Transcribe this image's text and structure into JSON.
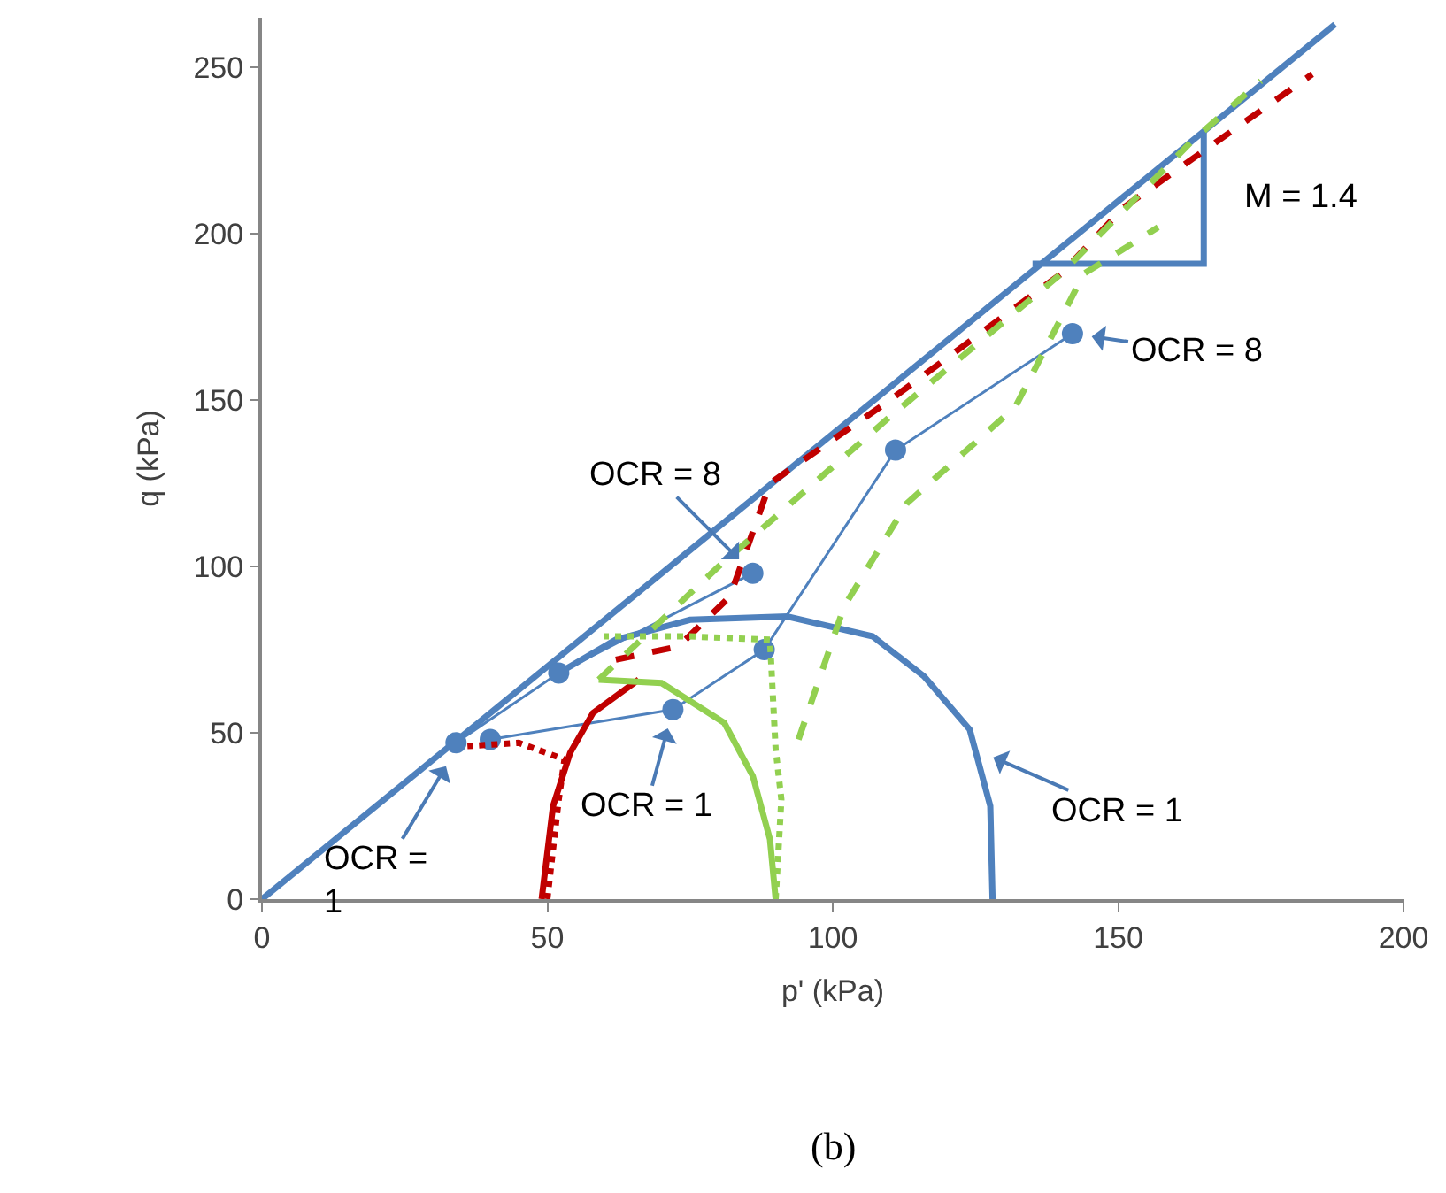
{
  "chart_data": {
    "type": "line",
    "xlabel": "p' (kPa)",
    "ylabel": "q (kPa)",
    "xlim": [
      0,
      200
    ],
    "xticks": [
      0,
      50,
      100,
      150,
      200
    ],
    "ylim": [
      0,
      265
    ],
    "yticks": [
      0,
      50,
      100,
      150,
      200,
      250
    ],
    "series": [
      {
        "color": "#4f81bd",
        "line_style": "solid",
        "x": [
          0,
          188
        ],
        "values": [
          0,
          263
        ]
      },
      {
        "color": "#4f81bd",
        "line_style": "solid",
        "x": [
          135,
          165,
          165
        ],
        "values": [
          191,
          191,
          231
        ]
      },
      {
        "color": "#4f81bd",
        "line_style": "solid",
        "x": [
          128,
          127.6,
          124,
          116,
          107,
          92,
          75,
          62,
          52
        ],
        "values": [
          0,
          28,
          51,
          67,
          79,
          85,
          84,
          78,
          68
        ]
      },
      {
        "color": "#4f81bd",
        "line_style": "solid",
        "marker": "circle",
        "x": [
          34,
          52,
          86
        ],
        "values": [
          47,
          68,
          98
        ]
      },
      {
        "color": "#4f81bd",
        "line_style": "solid",
        "marker": "circle",
        "x": [
          40,
          72,
          88,
          111,
          142
        ],
        "values": [
          48,
          57,
          75,
          135,
          170
        ]
      },
      {
        "color": "#c00000",
        "line_style": "solid",
        "x": [
          49,
          51,
          54,
          58,
          66
        ],
        "values": [
          0,
          28,
          44,
          56,
          66
        ]
      },
      {
        "color": "#c00000",
        "line_style": "dotted",
        "x": [
          50,
          52,
          53,
          45,
          36
        ],
        "values": [
          0,
          30,
          42,
          47,
          46
        ]
      },
      {
        "color": "#c00000",
        "line_style": "dashed",
        "x": [
          62,
          73,
          82,
          89,
          110,
          140,
          151,
          184
        ],
        "values": [
          72,
          76,
          91,
          125,
          150,
          188,
          208,
          248
        ]
      },
      {
        "color": "#92d050",
        "line_style": "solid",
        "x": [
          90,
          89,
          86,
          81,
          70,
          59
        ],
        "values": [
          0,
          18,
          37,
          53,
          65,
          66
        ]
      },
      {
        "color": "#92d050",
        "line_style": "dotted",
        "x": [
          90,
          91,
          90,
          89,
          75,
          60
        ],
        "values": [
          0,
          30,
          45,
          78,
          79,
          79
        ]
      },
      {
        "color": "#92d050",
        "line_style": "dashed",
        "x": [
          94,
          97,
          102,
          113,
          132,
          144,
          157
        ],
        "values": [
          48,
          63,
          88,
          119,
          148,
          188,
          202
        ]
      },
      {
        "color": "#92d050",
        "line_style": "dashed",
        "x": [
          59,
          80,
          110,
          140,
          163,
          175
        ],
        "values": [
          66,
          100,
          145,
          188,
          228,
          246
        ]
      }
    ],
    "annotations": [
      {
        "text": "M = 1.4",
        "x": 165,
        "y": 211
      },
      {
        "text": "OCR = 8",
        "x": 142,
        "y": 170
      },
      {
        "text": "OCR = 8",
        "x": 86,
        "y": 98
      },
      {
        "text": "OCR = 1",
        "x": 72,
        "y": 57
      },
      {
        "text": "OCR = 1",
        "x": 125,
        "y": 45
      },
      {
        "text": "OCR =\n1",
        "x": 34,
        "y": 45
      },
      "(b)"
    ]
  }
}
